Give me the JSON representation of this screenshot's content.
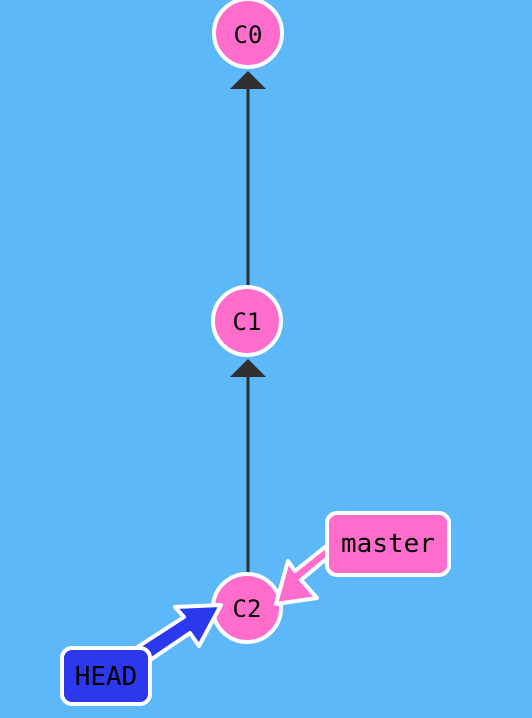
{
  "colors": {
    "background": "#5cb8f8",
    "commit_fill": "#ff6dcc",
    "commit_stroke": "#ffffff",
    "edge": "#2f2f2f",
    "branch_master": "#ff6dcc",
    "head": "#2b38ee",
    "label_text": "#000000"
  },
  "commits": [
    {
      "id": "C0",
      "label": "C0"
    },
    {
      "id": "C1",
      "label": "C1"
    },
    {
      "id": "C2",
      "label": "C2"
    }
  ],
  "edges": [
    {
      "from": "C1",
      "to": "C0"
    },
    {
      "from": "C2",
      "to": "C1"
    }
  ],
  "refs": {
    "master": {
      "label": "master",
      "points_to": "C2"
    },
    "head": {
      "label": "HEAD",
      "points_to": "C2"
    }
  }
}
